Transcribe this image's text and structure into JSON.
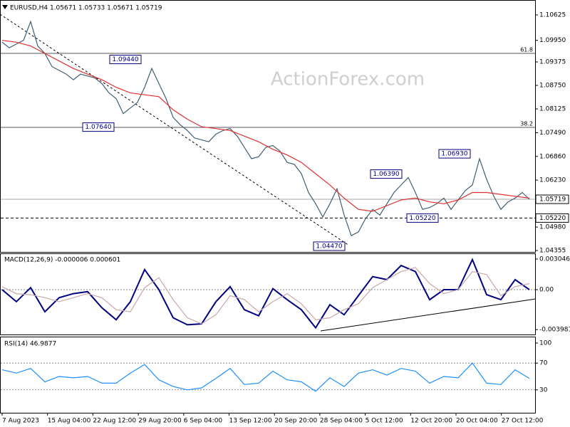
{
  "chart_data": [
    {
      "type": "line",
      "title": "EURUSD,H4 1.05671 1.05733 1.05671 1.05719",
      "watermark": "ActionForex.com",
      "ylim": [
        1.04318,
        1.11023
      ],
      "yticks": [
        1.10625,
        {
          "value": 1.0995,
          "label": "1.09950"
        },
        1.09375,
        {
          "value": 1.0875,
          "label": "1.08750"
        },
        1.08125,
        {
          "value": 1.0749,
          "label": "1.07490"
        },
        {
          "value": 1.0686,
          "label": "1.06860"
        },
        {
          "value": 1.0623,
          "label": "1.06230"
        },
        {
          "value": 1.0498,
          "label": "1.04980"
        },
        1.04355
      ],
      "series": [
        {
          "color": "#3f5f74",
          "values": [
            1.099,
            1.0975,
            1.0985,
            1.0995,
            1.1045,
            1.098,
            1.096,
            1.0925,
            1.0915,
            1.0905,
            1.089,
            1.0905,
            1.09,
            1.0895,
            1.088,
            1.0855,
            1.084,
            1.08,
            1.0815,
            1.083,
            1.087,
            1.092,
            1.088,
            1.084,
            1.079,
            1.077,
            1.0755,
            1.0735,
            1.073,
            1.0725,
            1.0745,
            1.0755,
            1.076,
            1.074,
            1.071,
            1.068,
            1.0685,
            1.071,
            1.0715,
            1.07,
            1.067,
            1.0665,
            1.064,
            1.059,
            1.056,
            1.0525,
            1.056,
            1.06,
            1.053,
            1.0475,
            1.0485,
            1.052,
            1.0545,
            1.053,
            1.056,
            1.059,
            1.061,
            1.063,
            1.059,
            1.0545,
            1.055,
            1.056,
            1.0575,
            1.0545,
            1.057,
            1.0595,
            1.061,
            1.068,
            1.0625,
            1.058,
            1.0545,
            1.0565,
            1.0575,
            1.059,
            1.05719
          ]
        },
        {
          "color": "#e03030",
          "values": [
            1.0995,
            1.099,
            1.098,
            1.096,
            1.094,
            1.092,
            1.0905,
            1.089,
            1.087,
            1.0855,
            1.085,
            1.0845,
            1.081,
            1.0785,
            1.0765,
            1.076,
            1.0755,
            1.074,
            1.0725,
            1.0705,
            1.069,
            1.067,
            1.064,
            1.061,
            1.0575,
            1.0545,
            1.054,
            1.0555,
            1.057,
            1.0575,
            1.0565,
            1.056,
            1.057,
            1.059,
            1.059,
            1.0585,
            1.058,
            1.0575
          ]
        }
      ],
      "levels": [
        {
          "value": 1.09602,
          "label": "61.8"
        },
        {
          "value": 1.07633,
          "label": "38.2"
        }
      ],
      "current": {
        "value": 1.05719,
        "label": "1.05719"
      },
      "support": {
        "value": 1.0522,
        "label": "1.05220"
      },
      "annotations": [
        {
          "value": 1.0944,
          "label": "1.09440"
        },
        {
          "value": 1.0764,
          "label": "1.07640"
        },
        {
          "value": 1.0639,
          "label": "1.06390"
        },
        {
          "value": 1.0693,
          "label": "1.06930"
        },
        {
          "value": 1.0522,
          "label": "1.05220"
        },
        {
          "value": 1.0447,
          "label": "1.04470"
        }
      ]
    },
    {
      "type": "line",
      "title": "MACD(12,26,9) -0.000006 0.000601",
      "ylim": [
        -0.004463,
        0.003613
      ],
      "yticks": [
        0.003046,
        {
          "value": 0,
          "label": "0.00"
        },
        -0.003981
      ],
      "levels": [
        0
      ],
      "series": [
        {
          "color": "#000080",
          "values": [
            0.0,
            -0.0012,
            0.0002,
            -0.0022,
            -0.0008,
            -0.0004,
            -0.0002,
            -0.0018,
            -0.003,
            -0.0012,
            0.002,
            0.0,
            -0.0028,
            -0.0035,
            -0.0034,
            -0.0012,
            0.0003,
            -0.002,
            -0.0026,
            0.0001,
            -0.001,
            -0.002,
            -0.0038,
            -0.0015,
            -0.0025,
            -0.0006,
            0.0013,
            0.001,
            0.0024,
            0.0018,
            -0.001,
            0.0,
            0.0,
            0.003,
            -0.0005,
            -0.001,
            0.001,
            -6e-06
          ]
        },
        {
          "color": "#c8a8a8",
          "values": [
            0.0003,
            -0.0004,
            -0.0005,
            -0.0008,
            -0.0012,
            -0.0008,
            -0.0004,
            -0.0008,
            -0.002,
            -0.0022,
            0.0002,
            0.0012,
            -0.001,
            -0.0028,
            -0.0034,
            -0.0025,
            -0.0006,
            -0.001,
            -0.0022,
            -0.0012,
            -0.0004,
            -0.0014,
            -0.003,
            -0.0028,
            -0.002,
            -0.0014,
            0.0002,
            0.001,
            0.0018,
            0.0022,
            0.0006,
            -0.0004,
            0.0,
            0.0018,
            0.0015,
            -0.0006,
            0.0003,
            0.000601
          ]
        }
      ]
    },
    {
      "type": "line",
      "title": "RSI(14) 46.9877",
      "ylim": [
        0,
        100
      ],
      "yticks": [
        100,
        70,
        30
      ],
      "levels": [
        70,
        30
      ],
      "series": [
        {
          "color": "#1e90ff",
          "values": [
            60,
            55,
            62,
            42,
            50,
            48,
            50,
            40,
            40,
            55,
            68,
            45,
            35,
            30,
            33,
            47,
            62,
            38,
            40,
            58,
            45,
            42,
            28,
            48,
            35,
            55,
            60,
            52,
            62,
            58,
            40,
            50,
            48,
            70,
            40,
            38,
            60,
            46.9877
          ]
        }
      ],
      "x_labels": [
        "7 Aug 2023",
        "15 Aug 04:00",
        "22 Aug 12:00",
        "29 Aug 20:00",
        "6 Sep 04:00",
        "13 Sep 12:00",
        "20 Sep 20:00",
        "28 Sep 04:00",
        "5 Oct 12:00",
        "12 Oct 20:00",
        "20 Oct 04:00",
        "27 Oct 12:00"
      ]
    }
  ]
}
